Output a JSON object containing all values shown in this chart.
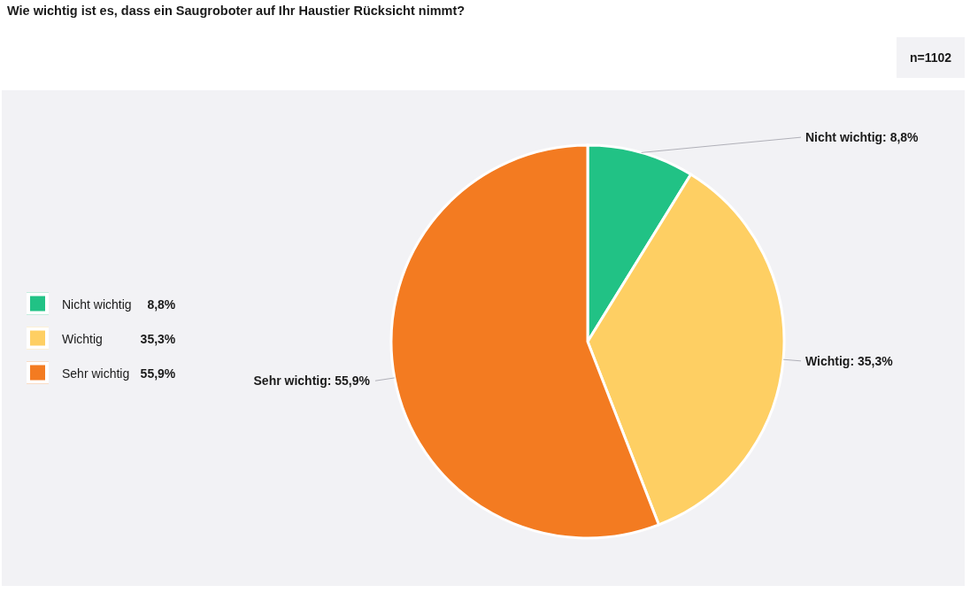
{
  "chart_data": {
    "type": "pie",
    "title": "Wie wichtig ist es, dass ein Saugroboter auf Ihr Haustier Rücksicht nimmt?",
    "categories": [
      "Nicht wichtig",
      "Wichtig",
      "Sehr wichtig"
    ],
    "values": [
      8.8,
      35.3,
      55.9
    ],
    "value_labels": [
      "8,8%",
      "35,3%",
      "55,9%"
    ],
    "colors": [
      "#21c285",
      "#fecf63",
      "#f37b21"
    ],
    "legend": "left",
    "annotations": [
      "n=1102",
      {
        "text": "Nicht wichtig: 8,8%",
        "x": "Nicht wichtig"
      },
      {
        "text": "Wichtig: 35,3%",
        "x": "Wichtig"
      },
      {
        "text": "Sehr wichtig: 55,9%",
        "x": "Sehr wichtig"
      }
    ]
  }
}
